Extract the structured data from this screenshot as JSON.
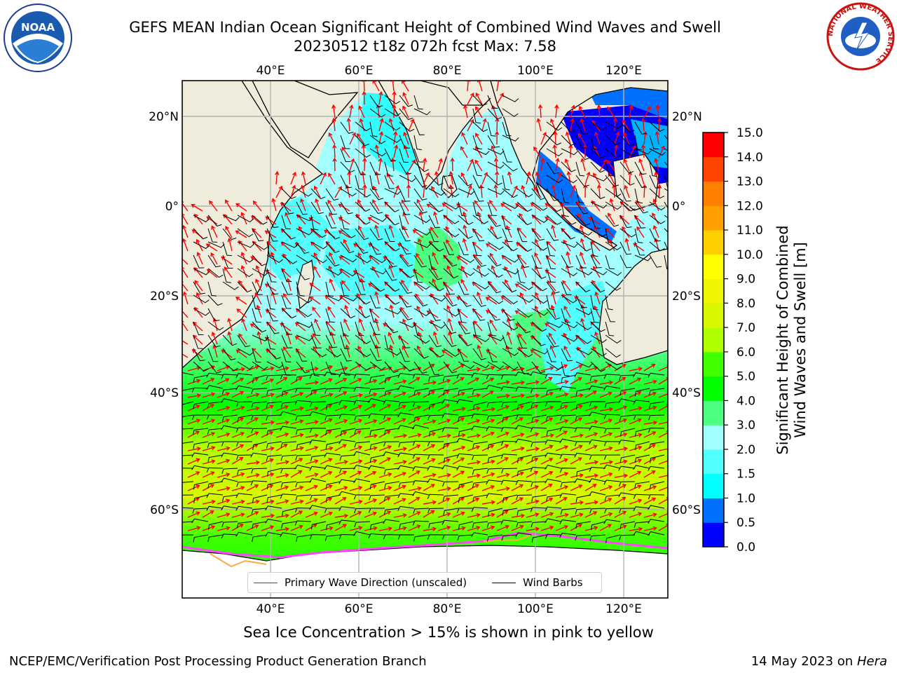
{
  "header": {
    "title_line1": "GEFS MEAN Indian Ocean Significant Height of Combined Wind Waves and Swell",
    "title_line2": "20230512 t18z 072h fcst   Max: 7.58"
  },
  "logos": {
    "left": {
      "icon": "noaa-logo-icon",
      "text": "NOAA"
    },
    "right": {
      "icon": "nws-logo-icon",
      "ring_text": "NATIONAL WEATHER SERVICE"
    }
  },
  "map": {
    "lon_ticks": [
      "40°E",
      "60°E",
      "80°E",
      "100°E",
      "120°E"
    ],
    "lat_ticks": [
      "20°N",
      "0°",
      "20°S",
      "40°S",
      "60°S"
    ],
    "lon_values": [
      40,
      60,
      80,
      100,
      120
    ],
    "lat_values": [
      20,
      0,
      -20,
      -40,
      -60
    ],
    "lon_range": [
      20,
      130
    ],
    "lat_range": [
      -70,
      27
    ],
    "projection": "mercator",
    "grid": true,
    "colors": {
      "land": "#efecdc",
      "ice": "#ffffff",
      "wave_arrows": "#ff0000",
      "wind_barbs": "#000000"
    }
  },
  "colorbar": {
    "ticks": [
      "0.0",
      "0.5",
      "1.0",
      "1.5",
      "2.0",
      "3.0",
      "4.0",
      "5.0",
      "6.0",
      "7.0",
      "8.0",
      "9.0",
      "10.0",
      "11.0",
      "12.0",
      "13.0",
      "14.0",
      "15.0"
    ],
    "colors": [
      "#0000ff",
      "#0070ff",
      "#00ffff",
      "#52ffff",
      "#a3ffff",
      "#4cff80",
      "#00ff00",
      "#40ff00",
      "#b0ff00",
      "#d8f800",
      "#eff400",
      "#ffff00",
      "#ffd000",
      "#ffa000",
      "#ff7f00",
      "#ff4500",
      "#ff0000"
    ],
    "label_line1": "Significant Height of Combined",
    "label_line2": "Wind Waves and Swell [m]"
  },
  "legend": {
    "items": [
      {
        "label": "Primary Wave Direction (unscaled)",
        "color": "#ff0000"
      },
      {
        "label": "Wind Barbs",
        "color": "#000000"
      }
    ]
  },
  "caption": "Sea Ice Concentration > 15% is shown in pink to yellow",
  "footer": {
    "left": "NCEP/EMC/Verification Post Processing Product Generation Branch",
    "right_date": "14 May 2023 on",
    "right_host": "Hera"
  }
}
